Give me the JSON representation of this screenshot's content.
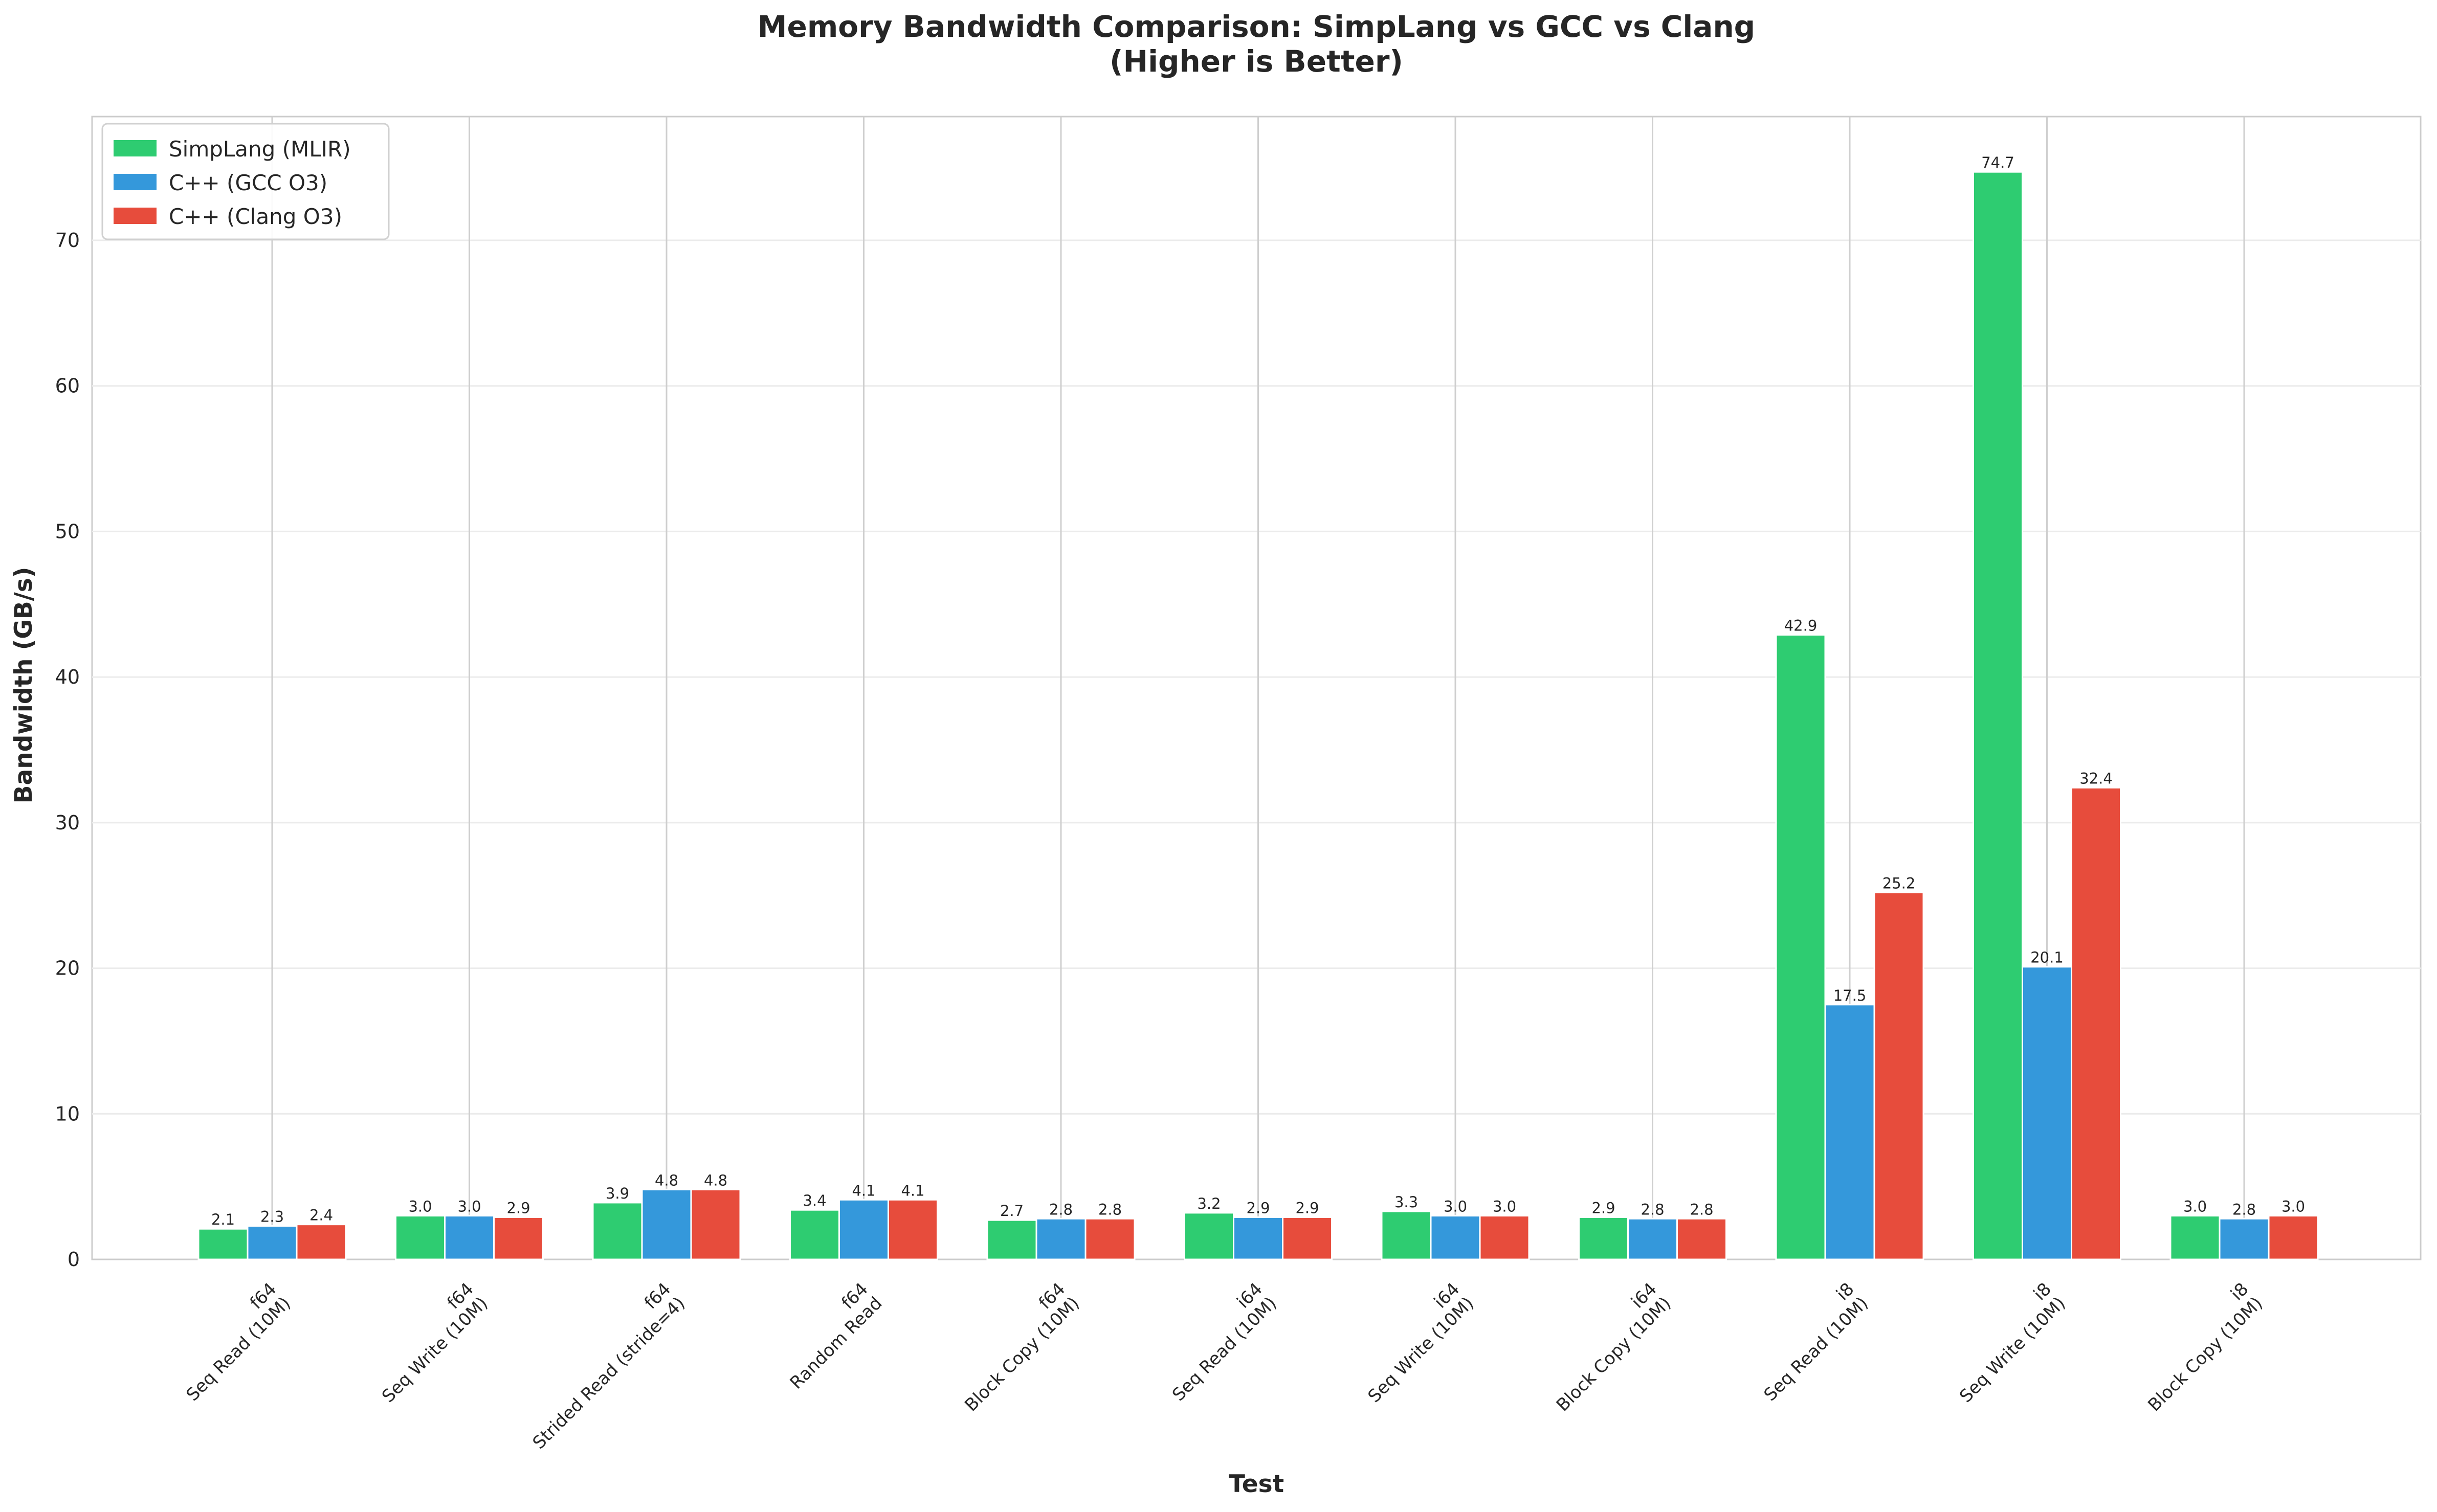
{
  "chart_data": {
    "type": "bar",
    "title": "Memory Bandwidth Comparison: SimpLang vs GCC vs Clang",
    "subtitle": "(Higher is Better)",
    "xlabel": "Test",
    "ylabel": "Bandwidth (GB/s)",
    "ylim": [
      0,
      78.5
    ],
    "yticks": [
      0,
      10,
      20,
      30,
      40,
      50,
      60,
      70
    ],
    "grid": true,
    "legend_position": "top-left",
    "categories": [
      [
        "f64",
        "Seq Read (10M)"
      ],
      [
        "f64",
        "Seq Write (10M)"
      ],
      [
        "f64",
        "Strided Read (stride=4)"
      ],
      [
        "f64",
        "Random Read"
      ],
      [
        "f64",
        "Block Copy (10M)"
      ],
      [
        "i64",
        "Seq Read (10M)"
      ],
      [
        "i64",
        "Seq Write (10M)"
      ],
      [
        "i64",
        "Block Copy (10M)"
      ],
      [
        "i8",
        "Seq Read (10M)"
      ],
      [
        "i8",
        "Seq Write (10M)"
      ],
      [
        "i8",
        "Block Copy (10M)"
      ]
    ],
    "series": [
      {
        "name": "SimpLang (MLIR)",
        "color": "#2ecc71",
        "values": [
          2.1,
          3.0,
          3.9,
          3.4,
          2.7,
          3.2,
          3.3,
          2.9,
          42.9,
          74.7,
          3.0
        ]
      },
      {
        "name": "C++ (GCC O3)",
        "color": "#3498db",
        "values": [
          2.3,
          3.0,
          4.8,
          4.1,
          2.8,
          2.9,
          3.0,
          2.8,
          17.5,
          20.1,
          2.8
        ]
      },
      {
        "name": "C++ (Clang O3)",
        "color": "#e74c3c",
        "values": [
          2.4,
          2.9,
          4.8,
          4.1,
          2.8,
          2.9,
          3.0,
          2.8,
          25.2,
          32.4,
          3.0
        ]
      }
    ]
  }
}
